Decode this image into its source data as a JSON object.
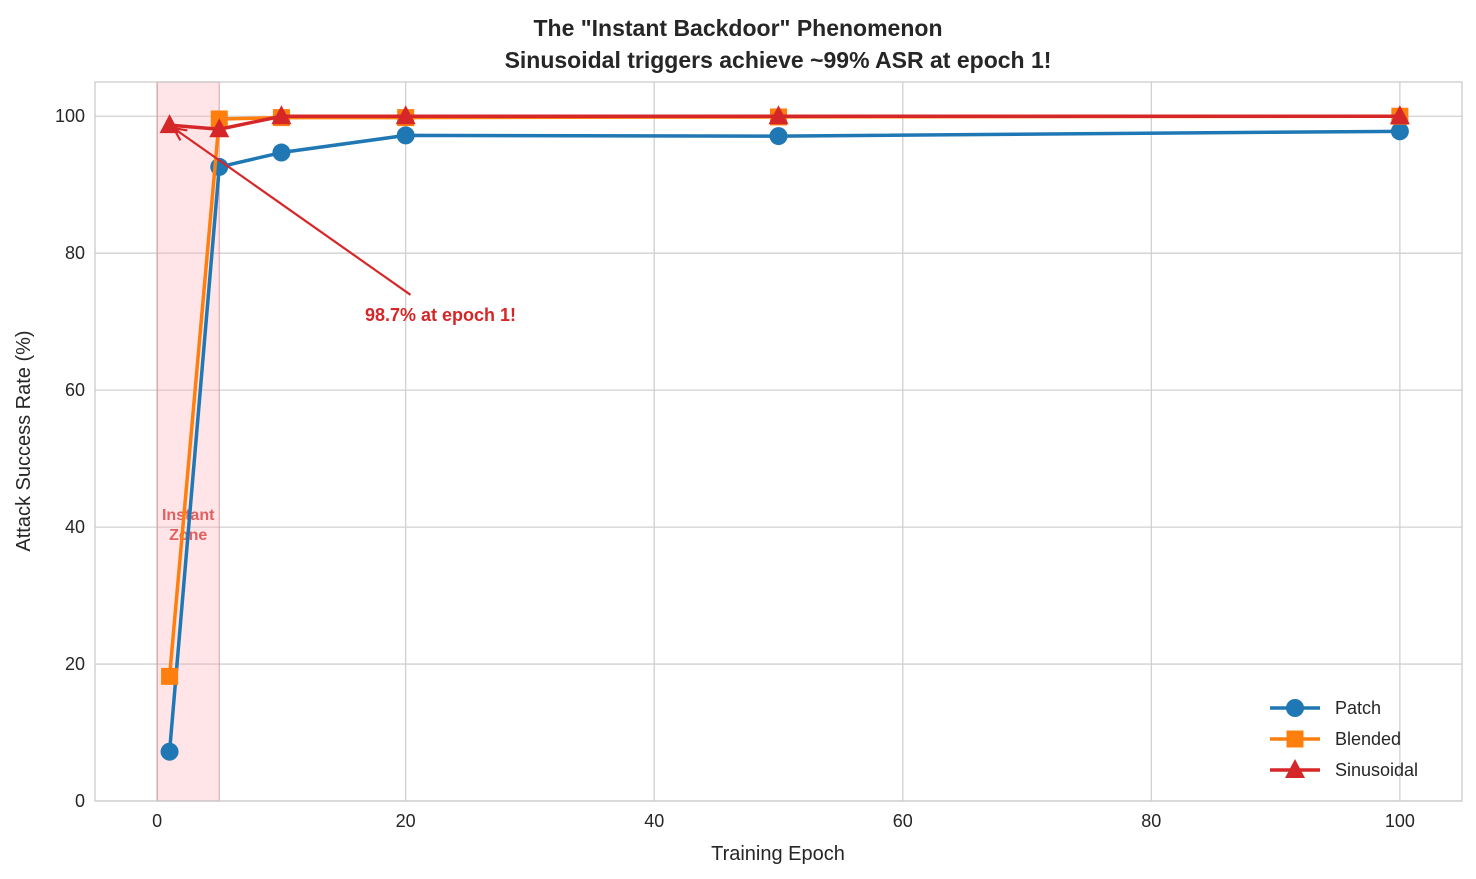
{
  "chart_data": {
    "type": "line",
    "title": "The \"Instant Backdoor\" Phenomenon",
    "subtitle": "Sinusoidal triggers achieve ~99% ASR at epoch 1!",
    "xlabel": "Training Epoch",
    "ylabel": "Attack Success Rate (%)",
    "xlim": [
      -5,
      105
    ],
    "ylim": [
      0,
      105
    ],
    "xticks": [
      0,
      20,
      40,
      60,
      80,
      100
    ],
    "yticks": [
      0,
      20,
      40,
      60,
      80,
      100
    ],
    "grid": true,
    "legend_position": "lower-right",
    "x": [
      1,
      5,
      10,
      20,
      50,
      100
    ],
    "series": [
      {
        "name": "Patch",
        "color": "#1f77b4",
        "marker": "circle",
        "values": [
          7.2,
          92.6,
          94.7,
          97.2,
          97.1,
          97.8
        ]
      },
      {
        "name": "Blended",
        "color": "#ff7f0e",
        "marker": "square",
        "values": [
          18.2,
          99.6,
          99.8,
          99.8,
          99.9,
          100
        ]
      },
      {
        "name": "Sinusoidal",
        "color": "#d62728",
        "marker": "triangle",
        "values": [
          98.7,
          98.1,
          100,
          100,
          100,
          100
        ]
      }
    ],
    "shaded_region": {
      "x": [
        0,
        5
      ],
      "label": "Instant\nZone",
      "label_line1": "Instant",
      "label_line2": "Zone",
      "color": "#ff9aa8"
    },
    "annotation": {
      "text": "98.7% at epoch 1!",
      "point": [
        1,
        98.7
      ],
      "text_at": [
        22.8,
        71
      ],
      "color": "#d62728"
    }
  }
}
